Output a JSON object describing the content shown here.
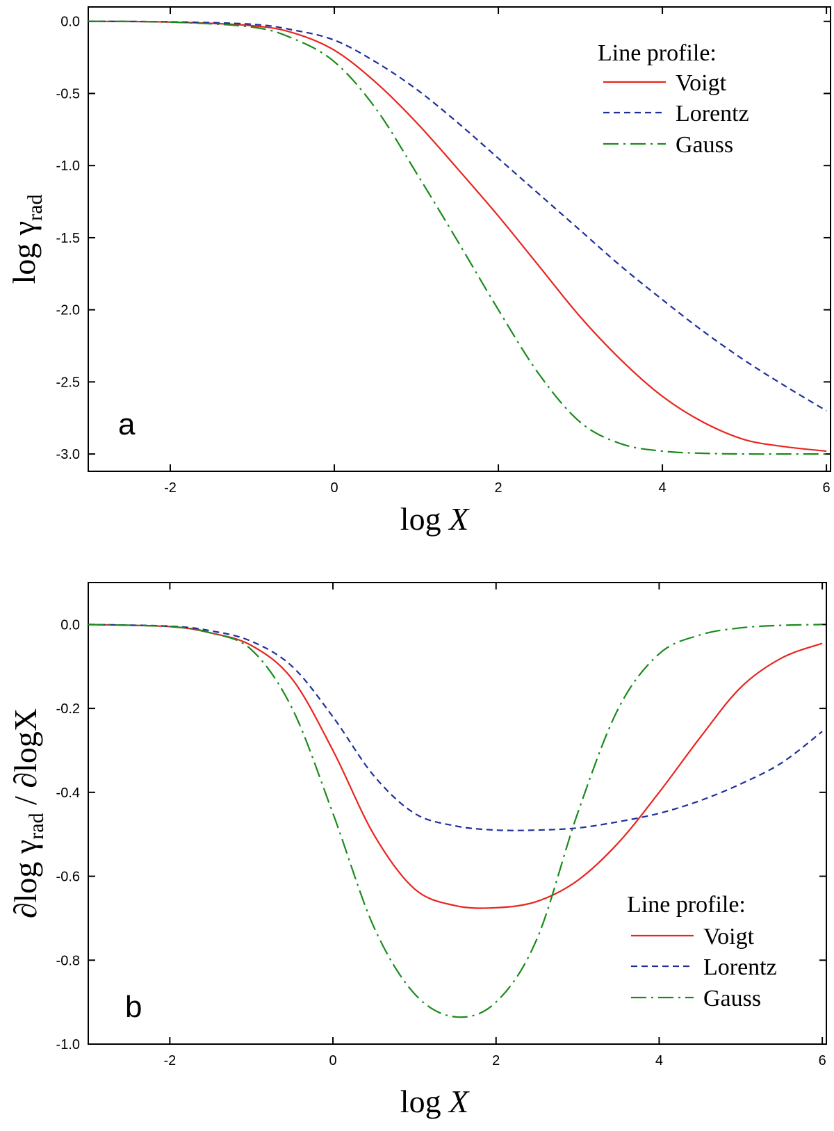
{
  "colors": {
    "voigt": "#e8251f",
    "lorentz": "#1f2f9a",
    "gauss": "#1a8a1a"
  },
  "chart_data": [
    {
      "type": "line",
      "panel_label": "a",
      "xlabel": {
        "prefix": "log ",
        "var": "X"
      },
      "ylabel": {
        "prefix": "log ",
        "var": "γ",
        "sub": "rad"
      },
      "xlim": [
        -3,
        6.05
      ],
      "ylim": [
        -3.12,
        0.1
      ],
      "xticks": [
        -2,
        0,
        2,
        4,
        6
      ],
      "yticks": [
        0.0,
        -0.5,
        -1.0,
        -1.5,
        -2.0,
        -2.5,
        -3.0
      ],
      "xtick_labels": [
        "-2",
        "0",
        "2",
        "4",
        "6"
      ],
      "ytick_labels": [
        "0.0",
        "-0.5",
        "-1.0",
        "-1.5",
        "-2.0",
        "-2.5",
        "-3.0"
      ],
      "grid": false,
      "legend": {
        "title": "Line profile:",
        "placement": "top-right"
      },
      "series": [
        {
          "name": "Voigt",
          "style": "solid",
          "x": [
            -3,
            -2,
            -1,
            -0.5,
            0,
            0.5,
            1,
            1.5,
            2,
            2.5,
            3,
            3.5,
            4,
            4.5,
            5,
            5.5,
            6
          ],
          "y": [
            0,
            -0.005,
            -0.03,
            -0.08,
            -0.2,
            -0.42,
            -0.7,
            -1.02,
            -1.35,
            -1.7,
            -2.05,
            -2.35,
            -2.6,
            -2.78,
            -2.9,
            -2.95,
            -2.98
          ]
        },
        {
          "name": "Lorentz",
          "style": "dashed",
          "x": [
            -3,
            -2,
            -1,
            -0.5,
            0,
            0.5,
            1,
            1.5,
            2,
            2.5,
            3,
            3.5,
            4,
            4.5,
            5,
            5.5,
            6
          ],
          "y": [
            0,
            -0.003,
            -0.02,
            -0.06,
            -0.13,
            -0.28,
            -0.47,
            -0.7,
            -0.95,
            -1.2,
            -1.45,
            -1.7,
            -1.93,
            -2.15,
            -2.35,
            -2.53,
            -2.7
          ]
        },
        {
          "name": "Gauss",
          "style": "dashdot",
          "x": [
            -3,
            -2,
            -1,
            -0.5,
            0,
            0.5,
            1,
            1.5,
            2,
            2.5,
            3,
            3.5,
            4,
            4.5,
            5,
            5.5,
            6
          ],
          "y": [
            0,
            -0.005,
            -0.04,
            -0.12,
            -0.28,
            -0.6,
            -1.05,
            -1.52,
            -2.0,
            -2.45,
            -2.78,
            -2.93,
            -2.98,
            -2.995,
            -3.0,
            -3.0,
            -3.0
          ]
        }
      ]
    },
    {
      "type": "line",
      "panel_label": "b",
      "xlabel": {
        "prefix": "log ",
        "var": "X"
      },
      "ylabel": {
        "prefix": "∂log ",
        "var": "γ",
        "sub": "rad",
        "suffix": " / ∂logX"
      },
      "xlim": [
        -3,
        6.05
      ],
      "ylim": [
        -1.0,
        0.1
      ],
      "xticks": [
        -2,
        0,
        2,
        4,
        6
      ],
      "yticks": [
        0.0,
        -0.2,
        -0.4,
        -0.6,
        -0.8,
        -1.0
      ],
      "xtick_labels": [
        "-2",
        "0",
        "2",
        "4",
        "6"
      ],
      "ytick_labels": [
        "0.0",
        "-0.2",
        "-0.4",
        "-0.6",
        "-0.8",
        "-1.0"
      ],
      "grid": false,
      "legend": {
        "title": "Line profile:",
        "placement": "bottom-right"
      },
      "series": [
        {
          "name": "Voigt",
          "style": "solid",
          "x": [
            -3,
            -2,
            -1.5,
            -1,
            -0.5,
            0,
            0.5,
            1,
            1.5,
            2,
            2.5,
            3,
            3.5,
            4,
            4.5,
            5,
            5.5,
            6
          ],
          "y": [
            0,
            -0.005,
            -0.02,
            -0.05,
            -0.13,
            -0.3,
            -0.5,
            -0.63,
            -0.67,
            -0.675,
            -0.66,
            -0.61,
            -0.52,
            -0.4,
            -0.27,
            -0.15,
            -0.08,
            -0.045
          ]
        },
        {
          "name": "Lorentz",
          "style": "dashed",
          "x": [
            -3,
            -2,
            -1.5,
            -1,
            -0.5,
            0,
            0.5,
            1,
            1.5,
            2,
            2.5,
            3,
            3.5,
            4,
            4.5,
            5,
            5.5,
            6
          ],
          "y": [
            0,
            -0.004,
            -0.015,
            -0.04,
            -0.1,
            -0.22,
            -0.36,
            -0.45,
            -0.48,
            -0.49,
            -0.49,
            -0.485,
            -0.47,
            -0.45,
            -0.42,
            -0.38,
            -0.33,
            -0.255
          ]
        },
        {
          "name": "Gauss",
          "style": "dashdot",
          "x": [
            -3,
            -2,
            -1.5,
            -1,
            -0.5,
            0,
            0.5,
            1,
            1.5,
            2,
            2.5,
            3,
            3.5,
            4,
            4.5,
            5,
            5.5,
            6
          ],
          "y": [
            0,
            -0.005,
            -0.02,
            -0.06,
            -0.2,
            -0.45,
            -0.72,
            -0.88,
            -0.935,
            -0.9,
            -0.75,
            -0.45,
            -0.2,
            -0.07,
            -0.025,
            -0.008,
            -0.002,
            0
          ]
        }
      ]
    }
  ]
}
